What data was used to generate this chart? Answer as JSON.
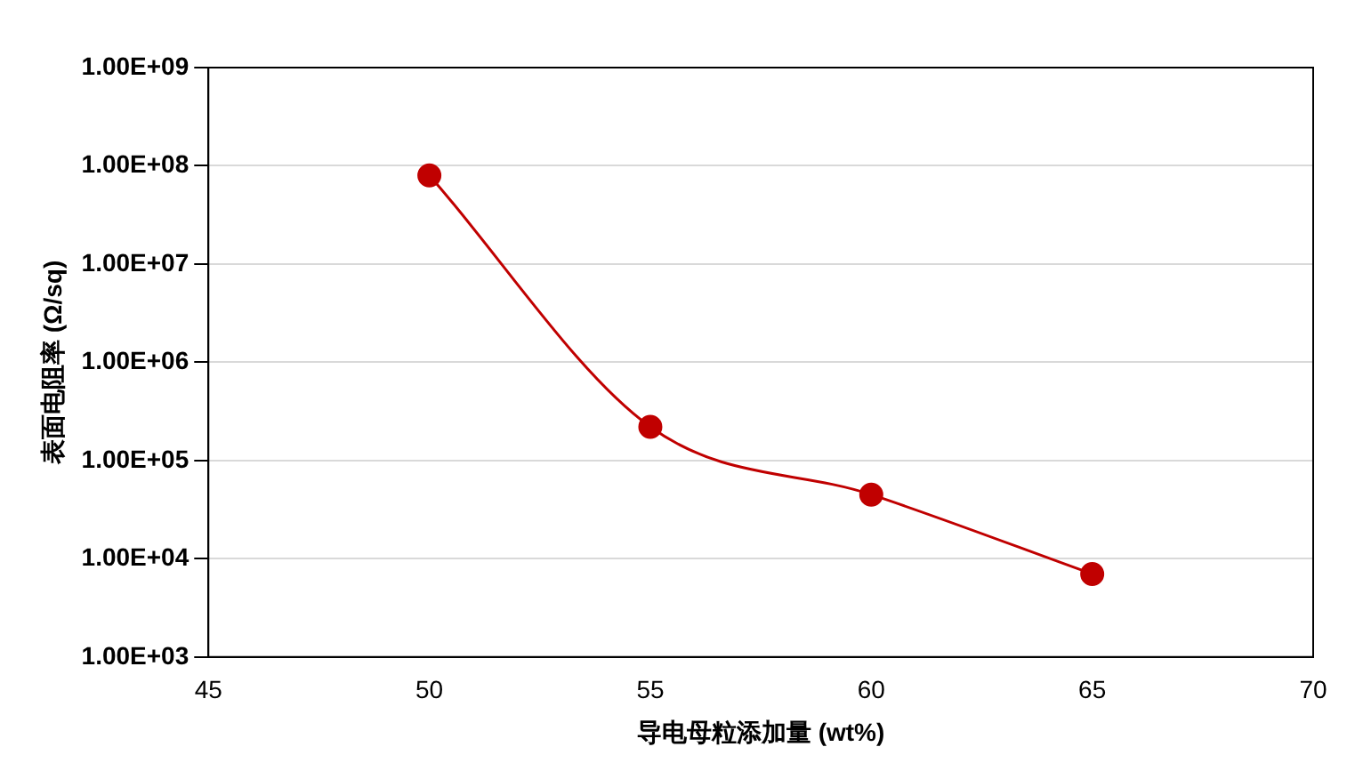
{
  "chart_data": {
    "type": "line",
    "xlabel": "导电母粒添加量 (wt%)",
    "ylabel": "表面电阻率 (Ω/sq)",
    "x": [
      50,
      55,
      60,
      65
    ],
    "series": [
      {
        "color": "#c00000",
        "values": [
          80000000,
          220000,
          45000,
          7000
        ]
      }
    ],
    "xlim": [
      45,
      70
    ],
    "xticks": [
      45,
      50,
      55,
      60,
      65,
      70
    ],
    "ylim": [
      1000,
      1000000000
    ],
    "yticks": [
      {
        "value": 1000,
        "label": "1.00E+03"
      },
      {
        "value": 10000,
        "label": "1.00E+04"
      },
      {
        "value": 100000,
        "label": "1.00E+05"
      },
      {
        "value": 1000000,
        "label": "1.00E+06"
      },
      {
        "value": 10000000,
        "label": "1.00E+07"
      },
      {
        "value": 100000000,
        "label": "1.00E+08"
      },
      {
        "value": 1000000000,
        "label": "1.00E+09"
      }
    ],
    "log": true,
    "grid": "y",
    "marker": "circle",
    "line_style": "solid",
    "legend": false
  }
}
